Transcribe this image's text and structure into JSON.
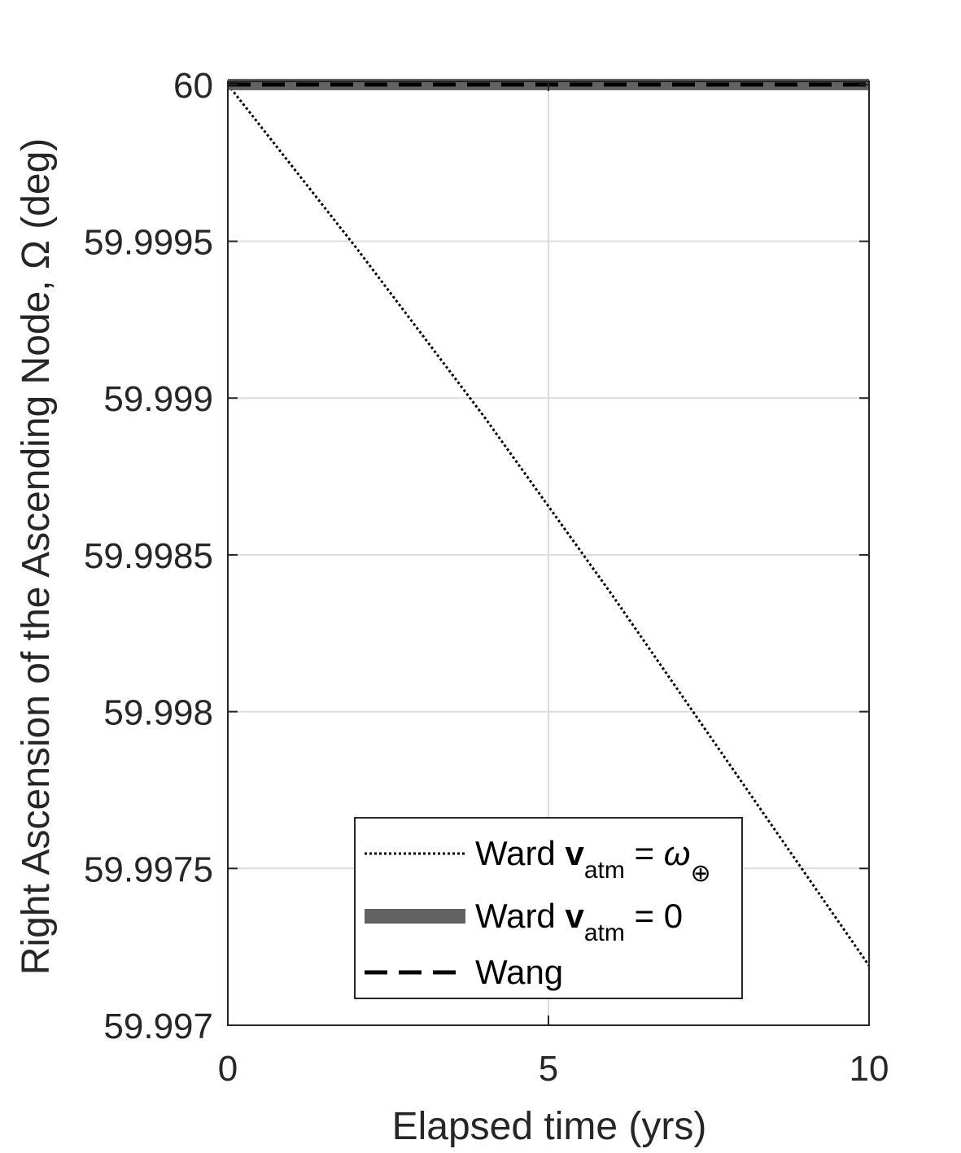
{
  "chart_data": {
    "type": "line",
    "title": "",
    "xlabel": "Elapsed time (yrs)",
    "ylabel": "Right Ascension of the Ascending Node, Ω (deg)",
    "xlim": [
      0,
      10
    ],
    "ylim": [
      59.997,
      60.00001
    ],
    "xticks": [
      0,
      5,
      10
    ],
    "xtick_labels": [
      "0",
      "5",
      "10"
    ],
    "yticks": [
      59.997,
      59.9975,
      59.998,
      59.9985,
      59.999,
      59.9995,
      60
    ],
    "ytick_labels": [
      "59.997",
      "59.9975",
      "59.998",
      "59.9985",
      "59.999",
      "59.9995",
      "60"
    ],
    "grid": true,
    "legend_position": "bottom-center",
    "series": [
      {
        "name": "Ward v_atm = ω_⊕",
        "legend": {
          "prefix": "Ward ",
          "bold": "v",
          "sub": "atm",
          "rel": " = ",
          "symbol": "ω",
          "symbol_sub": "⊕"
        },
        "style": "dotted",
        "color": "#000000",
        "x": [
          0,
          2,
          4,
          6,
          8,
          10
        ],
        "y": [
          60.0,
          59.99948,
          59.99894,
          59.99837,
          59.99778,
          59.99719
        ]
      },
      {
        "name": "Ward v_atm = 0",
        "legend": {
          "prefix": "Ward ",
          "bold": "v",
          "sub": "atm",
          "rel": " = 0"
        },
        "style": "thick",
        "color": "#626262",
        "x": [
          0,
          10
        ],
        "y": [
          60.0,
          60.0
        ]
      },
      {
        "name": "Wang",
        "legend": {
          "prefix": "Wang"
        },
        "style": "dashed",
        "color": "#000000",
        "x": [
          0,
          10
        ],
        "y": [
          60.0,
          60.0
        ]
      }
    ]
  }
}
